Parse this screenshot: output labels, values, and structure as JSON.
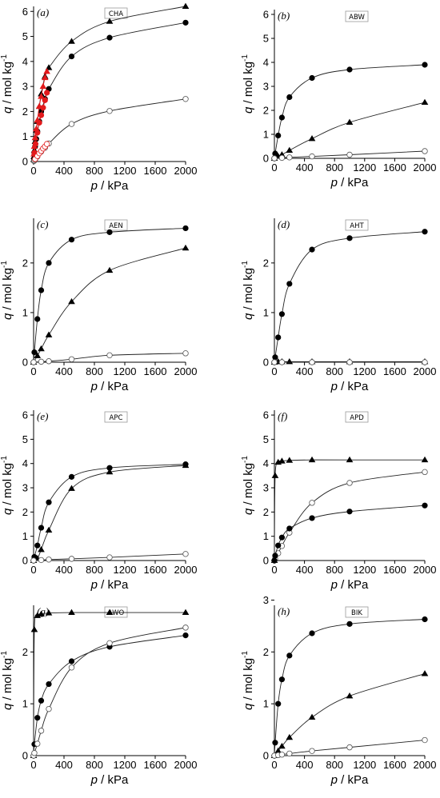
{
  "chart_data": [
    {
      "type": "scatter",
      "panel_label": "(a)",
      "framework": "CHA",
      "xlabel_symbol": "p",
      "xlabel_unit": " / kPa",
      "ylabel_symbol": "q",
      "ylabel_unit": " / mol kg",
      "ylabel_sup": "-1",
      "xlim": [
        0,
        2000
      ],
      "ylim": [
        0,
        6.2
      ],
      "xticks": [
        0,
        400,
        800,
        1200,
        1600,
        2000
      ],
      "yticks": [
        0,
        1,
        2,
        3,
        4,
        5,
        6
      ],
      "series": [
        {
          "marker": "triangle",
          "color": "#000000",
          "x": [
            5,
            10,
            20,
            35,
            50,
            75,
            100,
            150,
            200,
            500,
            1000,
            2000
          ],
          "y": [
            0.2,
            0.45,
            0.8,
            1.25,
            1.6,
            2.2,
            2.7,
            3.4,
            3.75,
            4.8,
            5.6,
            6.2
          ]
        },
        {
          "marker": "circle-filled",
          "color": "#000000",
          "x": [
            5,
            10,
            20,
            35,
            50,
            75,
            100,
            150,
            200,
            500,
            1000,
            2000
          ],
          "y": [
            0.1,
            0.3,
            0.6,
            0.9,
            1.2,
            1.6,
            2.0,
            2.5,
            2.9,
            4.2,
            4.95,
            5.55
          ]
        },
        {
          "marker": "circle-open",
          "color": "#000000",
          "x": [
            5,
            10,
            20,
            50,
            100,
            150,
            200,
            500,
            1000,
            2000
          ],
          "y": [
            0.02,
            0.04,
            0.08,
            0.2,
            0.4,
            0.55,
            0.72,
            1.5,
            2.02,
            2.5
          ]
        },
        {
          "marker": "triangle",
          "color": "#e31a1c",
          "x": [
            5,
            10,
            20,
            35,
            50,
            75,
            100,
            125,
            150,
            175
          ],
          "y": [
            0.3,
            0.6,
            0.95,
            1.3,
            1.65,
            2.2,
            2.6,
            3.0,
            3.35,
            3.6
          ]
        },
        {
          "marker": "circle-filled",
          "color": "#e31a1c",
          "x": [
            10,
            25,
            50,
            75,
            100,
            125,
            150,
            175
          ],
          "y": [
            0.35,
            0.7,
            1.15,
            1.55,
            1.85,
            2.15,
            2.45,
            2.75
          ]
        },
        {
          "marker": "circle-open",
          "color": "#e31a1c",
          "x": [
            20,
            50,
            75,
            100,
            125,
            150,
            175
          ],
          "y": [
            0.1,
            0.22,
            0.33,
            0.42,
            0.52,
            0.6,
            0.7
          ]
        }
      ]
    },
    {
      "type": "scatter",
      "panel_label": "(b)",
      "framework": "ABW",
      "xlabel_symbol": "p",
      "xlabel_unit": " / kPa",
      "ylabel_symbol": "q",
      "ylabel_unit": " / mol kg",
      "ylabel_sup": "-1",
      "xlim": [
        0,
        2000
      ],
      "ylim": [
        0,
        6.2
      ],
      "xticks": [
        0,
        400,
        800,
        1200,
        1600,
        2000
      ],
      "yticks": [
        0,
        1,
        2,
        3,
        4,
        5,
        6
      ],
      "series": [
        {
          "marker": "circle-filled",
          "color": "#000000",
          "x": [
            0,
            10,
            50,
            100,
            200,
            500,
            1000,
            2000
          ],
          "y": [
            0,
            0.2,
            0.95,
            1.7,
            2.55,
            3.35,
            3.7,
            3.9
          ]
        },
        {
          "marker": "triangle",
          "color": "#000000",
          "x": [
            0,
            50,
            100,
            200,
            500,
            1000,
            2000
          ],
          "y": [
            0,
            0.08,
            0.15,
            0.33,
            0.82,
            1.5,
            2.33
          ]
        },
        {
          "marker": "circle-open",
          "color": "#000000",
          "x": [
            0,
            100,
            200,
            500,
            1000,
            2000
          ],
          "y": [
            0,
            0.02,
            0.04,
            0.08,
            0.15,
            0.3
          ]
        }
      ]
    },
    {
      "type": "scatter",
      "panel_label": "(c)",
      "framework": "AEN",
      "xlabel_symbol": "p",
      "xlabel_unit": " / kPa",
      "ylabel_symbol": "q",
      "ylabel_unit": " / mol kg",
      "ylabel_sup": "-1",
      "xlim": [
        0,
        2000
      ],
      "ylim": [
        0,
        2.9
      ],
      "xticks": [
        0,
        400,
        800,
        1200,
        1600,
        2000
      ],
      "yticks": [
        0,
        1,
        2
      ],
      "series": [
        {
          "marker": "circle-filled",
          "color": "#000000",
          "x": [
            0,
            10,
            50,
            100,
            200,
            500,
            1000,
            2000
          ],
          "y": [
            0,
            0.2,
            0.87,
            1.45,
            2.0,
            2.47,
            2.62,
            2.7
          ]
        },
        {
          "marker": "triangle",
          "color": "#000000",
          "x": [
            0,
            50,
            100,
            200,
            500,
            1000,
            2000
          ],
          "y": [
            0,
            0.13,
            0.27,
            0.55,
            1.22,
            1.85,
            2.3
          ]
        },
        {
          "marker": "circle-open",
          "color": "#000000",
          "x": [
            0,
            100,
            200,
            500,
            1000,
            2000
          ],
          "y": [
            0,
            0.01,
            0.02,
            0.06,
            0.14,
            0.18
          ]
        }
      ]
    },
    {
      "type": "scatter",
      "panel_label": "(d)",
      "framework": "AHT",
      "xlabel_symbol": "p",
      "xlabel_unit": " / kPa",
      "ylabel_symbol": "q",
      "ylabel_unit": " / mol kg",
      "ylabel_sup": "-1",
      "xlim": [
        0,
        2000
      ],
      "ylim": [
        0,
        2.9
      ],
      "xticks": [
        0,
        400,
        800,
        1200,
        1600,
        2000
      ],
      "yticks": [
        0,
        1,
        2
      ],
      "series": [
        {
          "marker": "circle-filled",
          "color": "#000000",
          "x": [
            0,
            10,
            50,
            100,
            200,
            500,
            1000,
            2000
          ],
          "y": [
            0,
            0.1,
            0.5,
            0.97,
            1.58,
            2.27,
            2.5,
            2.63
          ]
        },
        {
          "marker": "triangle",
          "color": "#000000",
          "x": [
            0,
            50,
            100,
            200,
            500,
            1000,
            2000
          ],
          "y": [
            0,
            0.01,
            0.01,
            0.01,
            0.01,
            0.01,
            0.01
          ]
        },
        {
          "marker": "circle-open",
          "color": "#000000",
          "x": [
            0,
            100,
            500,
            1000,
            2000
          ],
          "y": [
            0,
            0,
            0,
            0,
            0
          ]
        }
      ]
    },
    {
      "type": "scatter",
      "panel_label": "(e)",
      "framework": "APC",
      "xlabel_symbol": "p",
      "xlabel_unit": " / kPa",
      "ylabel_symbol": "q",
      "ylabel_unit": " / mol kg",
      "ylabel_sup": "-1",
      "xlim": [
        0,
        2000
      ],
      "ylim": [
        0,
        6.2
      ],
      "xticks": [
        0,
        400,
        800,
        1200,
        1600,
        2000
      ],
      "yticks": [
        0,
        1,
        2,
        3,
        4,
        5,
        6
      ],
      "series": [
        {
          "marker": "circle-filled",
          "color": "#000000",
          "x": [
            0,
            10,
            50,
            100,
            200,
            500,
            1000,
            2000
          ],
          "y": [
            0,
            0.15,
            0.62,
            1.35,
            2.4,
            3.45,
            3.82,
            3.97
          ]
        },
        {
          "marker": "triangle",
          "color": "#000000",
          "x": [
            0,
            50,
            100,
            200,
            500,
            1000,
            2000
          ],
          "y": [
            0,
            0.08,
            0.45,
            1.25,
            2.97,
            3.65,
            3.92
          ]
        },
        {
          "marker": "circle-open",
          "color": "#000000",
          "x": [
            0,
            100,
            200,
            500,
            1000,
            2000
          ],
          "y": [
            0,
            0.02,
            0.04,
            0.07,
            0.13,
            0.27
          ]
        }
      ]
    },
    {
      "type": "scatter",
      "panel_label": "(f)",
      "framework": "APD",
      "xlabel_symbol": "p",
      "xlabel_unit": " / kPa",
      "ylabel_symbol": "q",
      "ylabel_unit": " / mol kg",
      "ylabel_sup": "-1",
      "xlim": [
        0,
        2000
      ],
      "ylim": [
        0,
        6.2
      ],
      "xticks": [
        0,
        400,
        800,
        1200,
        1600,
        2000
      ],
      "yticks": [
        0,
        1,
        2,
        3,
        4,
        5,
        6
      ],
      "series": [
        {
          "marker": "triangle",
          "color": "#000000",
          "x": [
            0,
            10,
            50,
            100,
            200,
            500,
            1000,
            2000
          ],
          "y": [
            0,
            3.5,
            4.05,
            4.1,
            4.13,
            4.15,
            4.15,
            4.15
          ]
        },
        {
          "marker": "circle-open",
          "color": "#000000",
          "x": [
            0,
            10,
            50,
            100,
            200,
            500,
            1000,
            2000
          ],
          "y": [
            0,
            0.08,
            0.3,
            0.6,
            1.15,
            2.38,
            3.2,
            3.65
          ]
        },
        {
          "marker": "circle-filled",
          "color": "#000000",
          "x": [
            0,
            10,
            50,
            100,
            200,
            500,
            1000,
            2000
          ],
          "y": [
            0,
            0.2,
            0.62,
            0.95,
            1.32,
            1.75,
            2.02,
            2.27
          ]
        }
      ]
    },
    {
      "type": "scatter",
      "panel_label": "(g)",
      "framework": "AWO",
      "xlabel_symbol": "p",
      "xlabel_unit": " / kPa",
      "ylabel_symbol": "q",
      "ylabel_unit": " / mol kg",
      "ylabel_sup": "-1",
      "xlim": [
        0,
        2000
      ],
      "ylim": [
        0,
        2.9
      ],
      "xticks": [
        0,
        400,
        800,
        1200,
        1600,
        2000
      ],
      "yticks": [
        0,
        1,
        2
      ],
      "series": [
        {
          "marker": "triangle",
          "color": "#000000",
          "x": [
            0,
            10,
            50,
            100,
            200,
            500,
            1000,
            2000
          ],
          "y": [
            0,
            2.43,
            2.7,
            2.73,
            2.75,
            2.76,
            2.76,
            2.76
          ]
        },
        {
          "marker": "circle-filled",
          "color": "#000000",
          "x": [
            0,
            10,
            50,
            100,
            200,
            500,
            1000,
            2000
          ],
          "y": [
            0,
            0.22,
            0.73,
            1.06,
            1.38,
            1.82,
            2.1,
            2.32
          ]
        },
        {
          "marker": "circle-open",
          "color": "#000000",
          "x": [
            0,
            10,
            50,
            100,
            200,
            500,
            1000,
            2000
          ],
          "y": [
            0,
            0.05,
            0.23,
            0.48,
            0.9,
            1.7,
            2.17,
            2.47
          ]
        }
      ]
    },
    {
      "type": "scatter",
      "panel_label": "(h)",
      "framework": "BIK",
      "xlabel_symbol": "p",
      "xlabel_unit": " / kPa",
      "ylabel_symbol": "q",
      "ylabel_unit": " / mol kg",
      "ylabel_sup": "-1",
      "xlim": [
        0,
        2000
      ],
      "ylim": [
        0,
        2.9
      ],
      "xticks": [
        0,
        400,
        800,
        1200,
        1600,
        2000
      ],
      "yticks": [
        0,
        1,
        2,
        3
      ],
      "series": [
        {
          "marker": "circle-filled",
          "color": "#000000",
          "x": [
            0,
            10,
            50,
            100,
            200,
            500,
            1000,
            2000
          ],
          "y": [
            0,
            0.25,
            1.0,
            1.47,
            1.93,
            2.36,
            2.54,
            2.63
          ]
        },
        {
          "marker": "triangle",
          "color": "#000000",
          "x": [
            0,
            50,
            100,
            200,
            500,
            1000,
            2000
          ],
          "y": [
            0,
            0.09,
            0.18,
            0.35,
            0.74,
            1.15,
            1.58
          ]
        },
        {
          "marker": "circle-open",
          "color": "#000000",
          "x": [
            0,
            50,
            100,
            200,
            500,
            1000,
            2000
          ],
          "y": [
            0,
            0.01,
            0.02,
            0.04,
            0.09,
            0.16,
            0.3
          ]
        }
      ]
    }
  ]
}
